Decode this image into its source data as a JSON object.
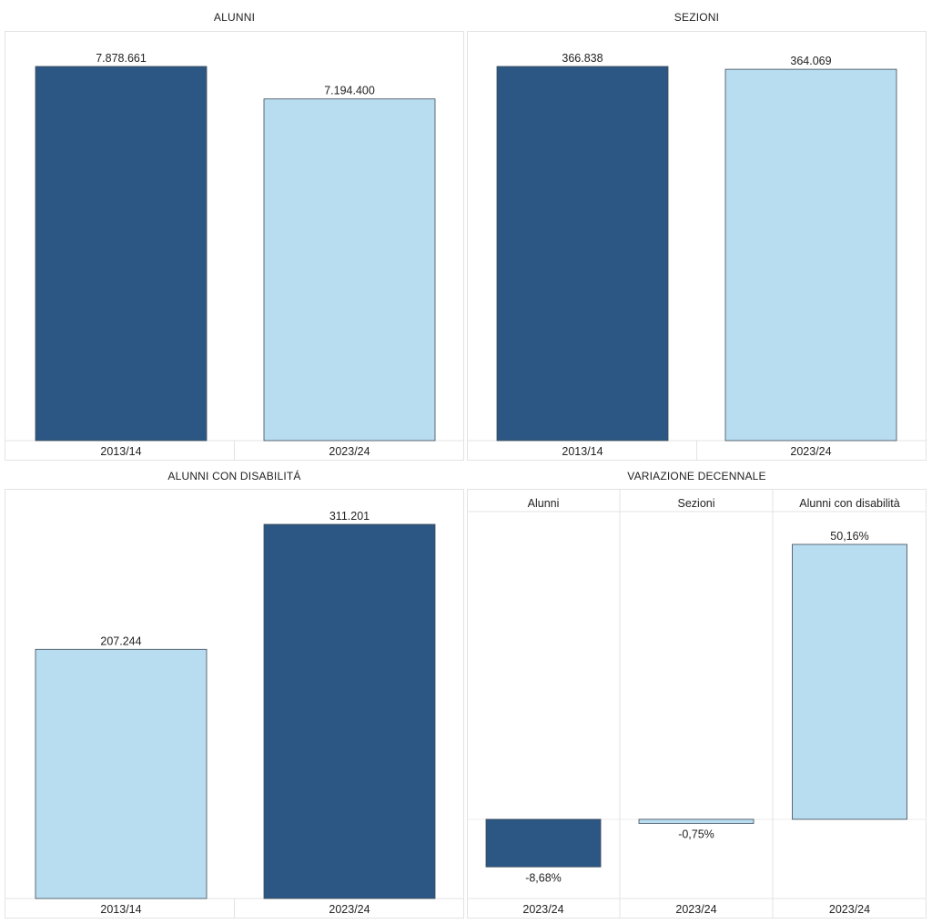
{
  "colors": {
    "dark": "#2c5784",
    "light": "#b9ddf0",
    "outline": "#3c4a56",
    "grid": "#e3e3e3"
  },
  "chart_data": [
    {
      "type": "bar",
      "title": "ALUNNI",
      "categories": [
        "2013/14",
        "2023/24"
      ],
      "values": [
        7878661,
        7194400
      ],
      "value_labels": [
        "7.878.661",
        "7.194.400"
      ],
      "bar_colors": [
        "dark",
        "light"
      ],
      "ylim": [
        0,
        7878661
      ]
    },
    {
      "type": "bar",
      "title": "SEZIONI",
      "categories": [
        "2013/14",
        "2023/24"
      ],
      "values": [
        366838,
        364069
      ],
      "value_labels": [
        "366.838",
        "364.069"
      ],
      "bar_colors": [
        "dark",
        "light"
      ],
      "ylim": [
        0,
        366838
      ]
    },
    {
      "type": "bar",
      "title": "ALUNNI CON DISABILITÁ",
      "categories": [
        "2013/14",
        "2023/24"
      ],
      "values": [
        207244,
        311201
      ],
      "value_labels": [
        "207.244",
        "311.201"
      ],
      "bar_colors": [
        "light",
        "dark"
      ],
      "ylim": [
        0,
        311201
      ]
    },
    {
      "type": "bar",
      "title": "VARIAZIONE DECENNALE",
      "column_headers": [
        "Alunni",
        "Sezioni",
        "Alunni con disabilità"
      ],
      "categories": [
        "2023/24",
        "2023/24",
        "2023/24"
      ],
      "values": [
        -8.68,
        -0.75,
        50.16
      ],
      "value_labels": [
        "-8,68%",
        "-0,75%",
        "50,16%"
      ],
      "bar_colors": [
        "dark",
        "light",
        "light"
      ],
      "ylim": [
        -10,
        54
      ]
    }
  ]
}
